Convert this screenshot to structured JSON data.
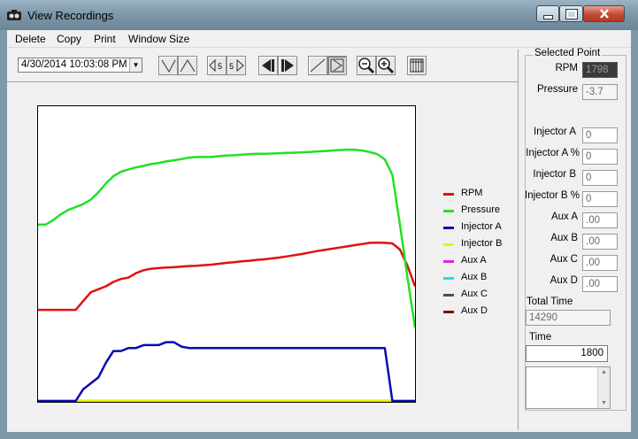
{
  "window": {
    "title": "View Recordings"
  },
  "menu": [
    "Delete",
    "Copy",
    "Print",
    "Window Size"
  ],
  "recording_select": {
    "value": "4/30/2014 10:03:08 PM"
  },
  "toolbar": {
    "buttons": [
      "trim-left",
      "trim-right",
      "step-back-5",
      "step-forward-5",
      "prev-mark",
      "next-mark",
      "line-mode",
      "cursor-mode",
      "zoom-out",
      "zoom-in",
      "columns"
    ],
    "step_label": "5"
  },
  "selected_point": {
    "title": "Selected Point",
    "fields": [
      {
        "label": "RPM",
        "value": "1798"
      },
      {
        "label": "Pressure",
        "value": "-3.7"
      },
      {
        "label": "Injector A",
        "value": "0"
      },
      {
        "label": "Injector A %",
        "value": "0"
      },
      {
        "label": "Injector B",
        "value": "0"
      },
      {
        "label": "Injector B %",
        "value": "0"
      },
      {
        "label": "Aux A",
        "value": ".00"
      },
      {
        "label": "Aux B",
        "value": ".00"
      },
      {
        "label": "Aux C",
        "value": ".00"
      },
      {
        "label": "Aux D",
        "value": ".00"
      }
    ],
    "total_time_label": "Total Time",
    "total_time": "14290",
    "time_label": "Time",
    "time": "1800"
  },
  "legend": [
    {
      "name": "RPM",
      "color": "#e01010"
    },
    {
      "name": "Pressure",
      "color": "#22e022"
    },
    {
      "name": "Injector A",
      "color": "#0a0ab0"
    },
    {
      "name": "Injector B",
      "color": "#f0f000"
    },
    {
      "name": "Aux A",
      "color": "#e020e0"
    },
    {
      "name": "Aux B",
      "color": "#20e0e0"
    },
    {
      "name": "Aux C",
      "color": "#505050"
    },
    {
      "name": "Aux D",
      "color": "#800000"
    }
  ],
  "chart_data": {
    "type": "line",
    "x": [
      0,
      2,
      4,
      6,
      8,
      10,
      12,
      14,
      16,
      18,
      20,
      22,
      24,
      26,
      28,
      30,
      32,
      34,
      36,
      38,
      40,
      42,
      44,
      46,
      48,
      50,
      52,
      54,
      56,
      58,
      60,
      62,
      64,
      66,
      68,
      70,
      72,
      74,
      76,
      78,
      80,
      82,
      84,
      86,
      88,
      90,
      92,
      94,
      96,
      98,
      100
    ],
    "series": [
      {
        "name": "Pressure",
        "color": "#22e022",
        "values": [
          60,
          60,
          61.5,
          63.5,
          65,
          66,
          67,
          68.5,
          71,
          74,
          76.5,
          78,
          78.8,
          79.5,
          80,
          80.6,
          81,
          81.5,
          81.9,
          82.3,
          82.8,
          83,
          83,
          83,
          83.3,
          83.5,
          83.6,
          83.8,
          84,
          84.1,
          84.1,
          84.2,
          84.3,
          84.4,
          84.5,
          84.6,
          84.7,
          84.9,
          85,
          85.2,
          85.4,
          85.5,
          85.5,
          85.2,
          84.7,
          84,
          82.2,
          77,
          60,
          42,
          25
        ]
      },
      {
        "name": "RPM",
        "color": "#e01010",
        "values": [
          31,
          31,
          31,
          31,
          31,
          31,
          34,
          37,
          38,
          39,
          40.5,
          41.5,
          42,
          43.5,
          44.5,
          45,
          45.2,
          45.4,
          45.5,
          45.7,
          45.9,
          46,
          46.2,
          46.4,
          46.7,
          47,
          47.2,
          47.5,
          47.7,
          48,
          48.2,
          48.5,
          48.8,
          49.2,
          49.6,
          50,
          50.5,
          51,
          51.4,
          51.8,
          52.2,
          52.6,
          53,
          53.4,
          53.8,
          53.9,
          53.8,
          53.6,
          51.5,
          46,
          39
        ]
      },
      {
        "name": "Injector A",
        "color": "#0a0ab0",
        "values": [
          0,
          0,
          0,
          0,
          0,
          0,
          4,
          6,
          8,
          13,
          17,
          17,
          18,
          18,
          19,
          19,
          19,
          20,
          20,
          18.5,
          18,
          18,
          18,
          18,
          18,
          18,
          18,
          18,
          18,
          18,
          18,
          18,
          18,
          18,
          18,
          18,
          18,
          18,
          18,
          18,
          18,
          18,
          18,
          18,
          18,
          18,
          18,
          0,
          0,
          0,
          0
        ]
      },
      {
        "name": "Injector B",
        "color": "#f0f000",
        "values": [
          0,
          0,
          0,
          0,
          0,
          0,
          0,
          0,
          0,
          0,
          0,
          0,
          0,
          0,
          0,
          0,
          0,
          0,
          0,
          0,
          0,
          0,
          0,
          0,
          0,
          0,
          0,
          0,
          0,
          0,
          0,
          0,
          0,
          0,
          0,
          0,
          0,
          0,
          0,
          0,
          0,
          0,
          0,
          0,
          0,
          0,
          0,
          0,
          0,
          0,
          0
        ]
      },
      {
        "name": "Aux A",
        "color": "#e020e0",
        "values": [
          0,
          0,
          0,
          0,
          0,
          0,
          0,
          0,
          0,
          0,
          0,
          0,
          0,
          0,
          0,
          0,
          0,
          0,
          0,
          0,
          0,
          0,
          0,
          0,
          0,
          0,
          0,
          0,
          0,
          0,
          0,
          0,
          0,
          0,
          0,
          0,
          0,
          0,
          0,
          0,
          0,
          0,
          0,
          0,
          0,
          0,
          0,
          0,
          0,
          0,
          0
        ]
      }
    ],
    "xlim": [
      0,
      100
    ],
    "ylim": [
      0,
      100
    ],
    "grid": false,
    "legend_position": "right"
  }
}
